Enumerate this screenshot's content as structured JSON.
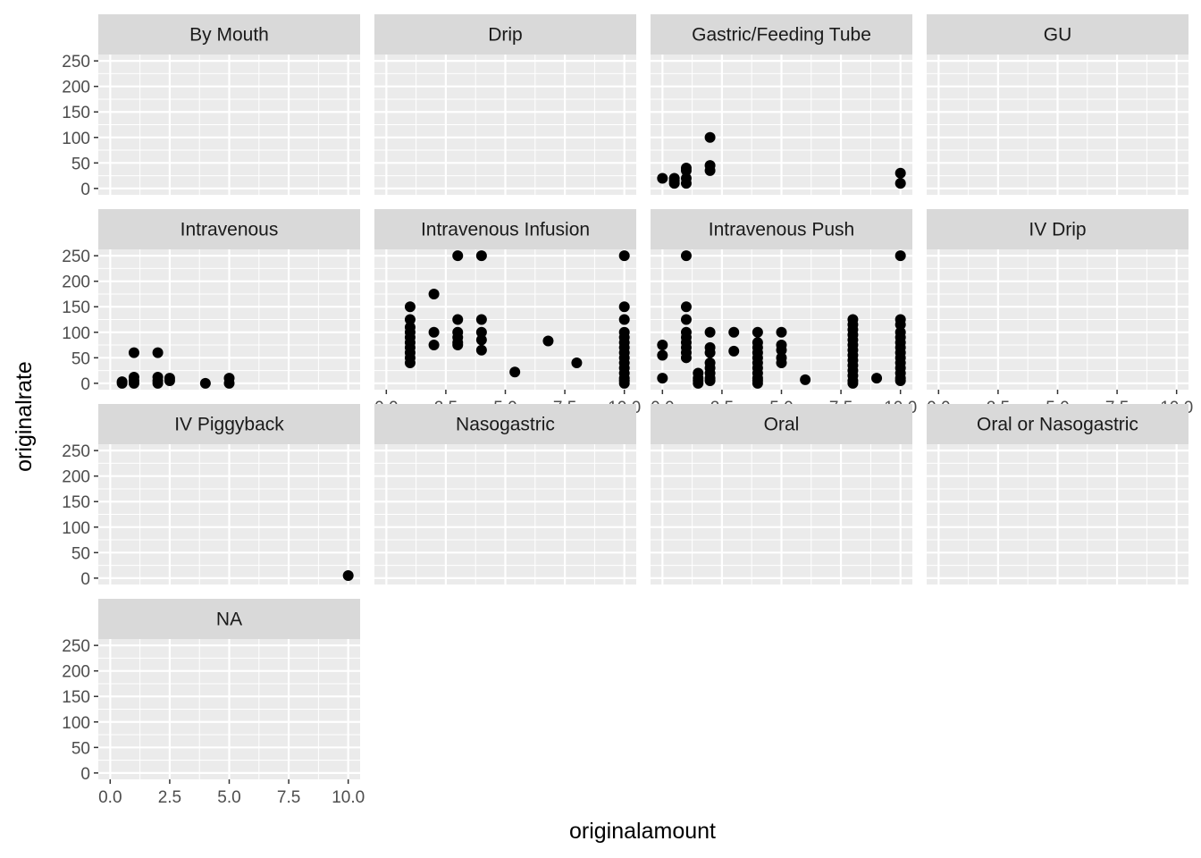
{
  "chart_data": {
    "type": "scatter",
    "xlabel": "originalamount",
    "ylabel": "originalrate",
    "xlim": [
      -0.5,
      10.5
    ],
    "ylim": [
      -12.5,
      262.5
    ],
    "x_ticks": [
      "0.0",
      "2.5",
      "5.0",
      "7.5",
      "10.0"
    ],
    "x_tick_values": [
      0,
      2.5,
      5,
      7.5,
      10
    ],
    "y_ticks": [
      "0",
      "50",
      "100",
      "150",
      "200",
      "250"
    ],
    "y_tick_values": [
      0,
      50,
      100,
      150,
      200,
      250
    ],
    "grid": true,
    "colors": {
      "panel_bg": "#ebebeb",
      "grid": "#ffffff",
      "strip_bg": "#d9d9d9",
      "point": "#000000"
    },
    "facets": [
      {
        "name": "By Mouth",
        "points": []
      },
      {
        "name": "Drip",
        "points": []
      },
      {
        "name": "Gastric/Feeding Tube",
        "points": [
          [
            0,
            20
          ],
          [
            0.5,
            15
          ],
          [
            0.5,
            10
          ],
          [
            0.5,
            20
          ],
          [
            1,
            20
          ],
          [
            1,
            35
          ],
          [
            1,
            40
          ],
          [
            1,
            10
          ],
          [
            2,
            100
          ],
          [
            2,
            45
          ],
          [
            2,
            35
          ],
          [
            10,
            30
          ],
          [
            10,
            10
          ]
        ]
      },
      {
        "name": "GU",
        "points": []
      },
      {
        "name": "Intravenous",
        "points": [
          [
            0.5,
            0
          ],
          [
            0.5,
            3
          ],
          [
            1,
            60
          ],
          [
            1,
            12
          ],
          [
            1,
            5
          ],
          [
            1,
            0
          ],
          [
            2,
            60
          ],
          [
            2,
            12
          ],
          [
            2,
            5
          ],
          [
            2,
            0
          ],
          [
            2.5,
            10
          ],
          [
            2.5,
            5
          ],
          [
            4,
            0
          ],
          [
            5,
            10
          ],
          [
            5,
            0
          ]
        ]
      },
      {
        "name": "Intravenous Infusion",
        "points": [
          [
            1,
            150
          ],
          [
            1,
            125
          ],
          [
            1,
            110
          ],
          [
            1,
            100
          ],
          [
            1,
            90
          ],
          [
            1,
            80
          ],
          [
            1,
            70
          ],
          [
            1,
            60
          ],
          [
            1,
            50
          ],
          [
            1,
            40
          ],
          [
            2,
            175
          ],
          [
            2,
            100
          ],
          [
            2,
            75
          ],
          [
            3,
            250
          ],
          [
            3,
            125
          ],
          [
            3,
            100
          ],
          [
            3,
            90
          ],
          [
            3,
            80
          ],
          [
            3,
            75
          ],
          [
            4,
            250
          ],
          [
            4,
            125
          ],
          [
            4,
            100
          ],
          [
            4,
            85
          ],
          [
            4,
            65
          ],
          [
            5.4,
            22
          ],
          [
            6.8,
            83
          ],
          [
            8,
            40
          ],
          [
            10,
            250
          ],
          [
            10,
            150
          ],
          [
            10,
            125
          ],
          [
            10,
            100
          ],
          [
            10,
            90
          ],
          [
            10,
            80
          ],
          [
            10,
            70
          ],
          [
            10,
            60
          ],
          [
            10,
            50
          ],
          [
            10,
            40
          ],
          [
            10,
            30
          ],
          [
            10,
            20
          ],
          [
            10,
            10
          ],
          [
            10,
            5
          ],
          [
            10,
            0
          ]
        ]
      },
      {
        "name": "Intravenous Push",
        "points": [
          [
            0,
            75
          ],
          [
            0,
            55
          ],
          [
            0,
            10
          ],
          [
            1,
            250
          ],
          [
            1,
            150
          ],
          [
            1,
            125
          ],
          [
            1,
            100
          ],
          [
            1,
            90
          ],
          [
            1,
            80
          ],
          [
            1,
            70
          ],
          [
            1,
            60
          ],
          [
            1,
            50
          ],
          [
            1.5,
            20
          ],
          [
            1.5,
            10
          ],
          [
            1.5,
            5
          ],
          [
            1.5,
            0
          ],
          [
            2,
            100
          ],
          [
            2,
            70
          ],
          [
            2,
            60
          ],
          [
            2,
            40
          ],
          [
            2,
            30
          ],
          [
            2,
            20
          ],
          [
            2,
            10
          ],
          [
            2,
            5
          ],
          [
            3,
            100
          ],
          [
            3,
            63
          ],
          [
            4,
            100
          ],
          [
            4,
            80
          ],
          [
            4,
            70
          ],
          [
            4,
            60
          ],
          [
            4,
            50
          ],
          [
            4,
            40
          ],
          [
            4,
            30
          ],
          [
            4,
            20
          ],
          [
            4,
            10
          ],
          [
            4,
            5
          ],
          [
            4,
            0
          ],
          [
            5,
            100
          ],
          [
            5,
            75
          ],
          [
            5,
            65
          ],
          [
            5,
            50
          ],
          [
            5,
            40
          ],
          [
            6,
            7
          ],
          [
            8,
            125
          ],
          [
            8,
            115
          ],
          [
            8,
            105
          ],
          [
            8,
            95
          ],
          [
            8,
            85
          ],
          [
            8,
            75
          ],
          [
            8,
            65
          ],
          [
            8,
            55
          ],
          [
            8,
            45
          ],
          [
            8,
            35
          ],
          [
            8,
            25
          ],
          [
            8,
            15
          ],
          [
            8,
            5
          ],
          [
            8,
            0
          ],
          [
            9,
            10
          ],
          [
            10,
            250
          ],
          [
            10,
            125
          ],
          [
            10,
            115
          ],
          [
            10,
            100
          ],
          [
            10,
            90
          ],
          [
            10,
            80
          ],
          [
            10,
            70
          ],
          [
            10,
            60
          ],
          [
            10,
            50
          ],
          [
            10,
            40
          ],
          [
            10,
            30
          ],
          [
            10,
            20
          ],
          [
            10,
            10
          ],
          [
            10,
            5
          ]
        ]
      },
      {
        "name": "IV Drip",
        "points": []
      },
      {
        "name": "IV Piggyback",
        "points": [
          [
            10,
            5
          ]
        ]
      },
      {
        "name": "Nasogastric",
        "points": []
      },
      {
        "name": "Oral",
        "points": []
      },
      {
        "name": "Oral or Nasogastric",
        "points": []
      },
      {
        "name": "NA",
        "points": []
      }
    ]
  }
}
